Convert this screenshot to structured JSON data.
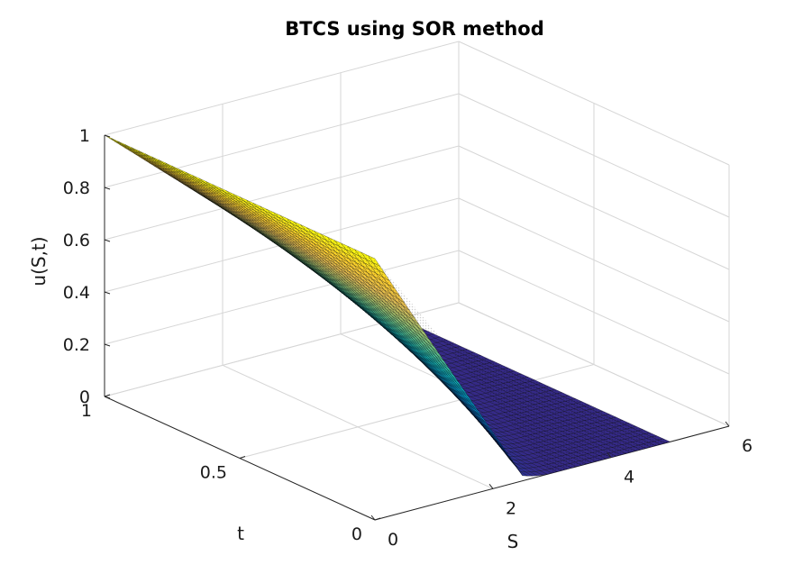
{
  "chart_data": {
    "type": "surface",
    "title": "BTCS using SOR method",
    "xlabel": "S",
    "ylabel": "t",
    "zlabel": "u(S,t)",
    "xlim": [
      0,
      6
    ],
    "ylim": [
      0,
      1
    ],
    "zlim": [
      0,
      1
    ],
    "xticks": [
      "0",
      "2",
      "4",
      "6"
    ],
    "yticks": [
      "0",
      "0.5",
      "1"
    ],
    "zticks": [
      "0",
      "0.2",
      "0.4",
      "0.6",
      "0.8",
      "1"
    ],
    "grid": true,
    "colormap": "parula",
    "edge_color": "#000000",
    "surface_points": [
      {
        "S": 0,
        "t": 1,
        "u": 1
      },
      {
        "S": 5,
        "t": 1,
        "u": 0
      },
      {
        "S": 0,
        "t": 0,
        "u": 1
      },
      {
        "S": 2.5,
        "t": 0,
        "u": 0.02
      },
      {
        "S": 3,
        "t": 0,
        "u": 0
      },
      {
        "S": 5,
        "t": 0,
        "u": 0
      }
    ]
  }
}
